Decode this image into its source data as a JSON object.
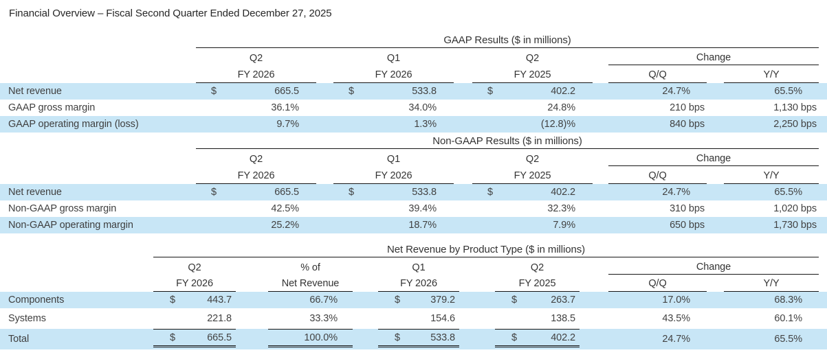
{
  "title": "Financial Overview – Fiscal Second Quarter Ended December 27, 2025",
  "colors": {
    "stripe": "#c8e6f6",
    "text": "#424242",
    "rule": "#161616"
  },
  "sections": [
    {
      "heading": "GAAP Results ($ in millions)",
      "change_label": "Change",
      "change_columns": [
        "Q/Q",
        "Y/Y"
      ],
      "columns": [
        {
          "top": "Q2",
          "bottom": "FY 2026"
        },
        {
          "top": "Q1",
          "bottom": "FY 2026"
        },
        {
          "top": "Q2",
          "bottom": "FY 2025"
        }
      ],
      "rows": [
        {
          "label": "Net revenue",
          "striped": true,
          "total": false,
          "values": [
            {
              "cur": "$",
              "val": "665.5"
            },
            {
              "cur": "$",
              "val": "533.8"
            },
            {
              "cur": "$",
              "val": "402.2"
            }
          ],
          "qq": "24.7%",
          "yy": "65.5%"
        },
        {
          "label": "GAAP gross margin",
          "striped": false,
          "total": false,
          "values": [
            {
              "cur": "",
              "val": "36.1%"
            },
            {
              "cur": "",
              "val": "34.0%"
            },
            {
              "cur": "",
              "val": "24.8%"
            }
          ],
          "qq": "210 bps",
          "yy": "1,130 bps"
        },
        {
          "label": "GAAP operating margin (loss)",
          "striped": true,
          "total": false,
          "values": [
            {
              "cur": "",
              "val": "9.7%"
            },
            {
              "cur": "",
              "val": "1.3%"
            },
            {
              "cur": "",
              "val": "(12.8)%"
            }
          ],
          "qq": "840 bps",
          "yy": "2,250 bps"
        }
      ]
    },
    {
      "heading": "Non-GAAP Results ($ in millions)",
      "change_label": "Change",
      "change_columns": [
        "Q/Q",
        "Y/Y"
      ],
      "columns": [
        {
          "top": "Q2",
          "bottom": "FY 2026"
        },
        {
          "top": "Q1",
          "bottom": "FY 2026"
        },
        {
          "top": "Q2",
          "bottom": "FY 2025"
        }
      ],
      "rows": [
        {
          "label": "Net revenue",
          "striped": true,
          "total": false,
          "values": [
            {
              "cur": "$",
              "val": "665.5"
            },
            {
              "cur": "$",
              "val": "533.8"
            },
            {
              "cur": "$",
              "val": "402.2"
            }
          ],
          "qq": "24.7%",
          "yy": "65.5%"
        },
        {
          "label": "Non-GAAP gross margin",
          "striped": false,
          "total": false,
          "values": [
            {
              "cur": "",
              "val": "42.5%"
            },
            {
              "cur": "",
              "val": "39.4%"
            },
            {
              "cur": "",
              "val": "32.3%"
            }
          ],
          "qq": "310 bps",
          "yy": "1,020 bps"
        },
        {
          "label": "Non-GAAP operating margin",
          "striped": true,
          "total": false,
          "values": [
            {
              "cur": "",
              "val": "25.2%"
            },
            {
              "cur": "",
              "val": "18.7%"
            },
            {
              "cur": "",
              "val": "7.9%"
            }
          ],
          "qq": "650 bps",
          "yy": "1,730 bps"
        }
      ]
    },
    {
      "heading": "Net Revenue by Product Type ($ in millions)",
      "change_label": "Change",
      "change_columns": [
        "Q/Q",
        "Y/Y"
      ],
      "columns": [
        {
          "top": "Q2",
          "bottom": "FY 2026"
        },
        {
          "top": "% of",
          "bottom": "Net Revenue"
        },
        {
          "top": "Q1",
          "bottom": "FY 2026"
        },
        {
          "top": "Q2",
          "bottom": "FY 2025"
        }
      ],
      "rows": [
        {
          "label": "Components",
          "striped": true,
          "total": false,
          "values": [
            {
              "cur": "$",
              "val": "443.7"
            },
            {
              "cur": "",
              "val": "66.7%"
            },
            {
              "cur": "$",
              "val": "379.2"
            },
            {
              "cur": "$",
              "val": "263.7"
            }
          ],
          "qq": "17.0%",
          "yy": "68.3%"
        },
        {
          "label": "Systems",
          "striped": false,
          "total": false,
          "values": [
            {
              "cur": "",
              "val": "221.8"
            },
            {
              "cur": "",
              "val": "33.3%"
            },
            {
              "cur": "",
              "val": "154.6"
            },
            {
              "cur": "",
              "val": "138.5"
            }
          ],
          "qq": "43.5%",
          "yy": "60.1%"
        },
        {
          "label": "Total",
          "striped": true,
          "total": true,
          "values": [
            {
              "cur": "$",
              "val": "665.5"
            },
            {
              "cur": "",
              "val": "100.0%"
            },
            {
              "cur": "$",
              "val": "533.8"
            },
            {
              "cur": "$",
              "val": "402.2"
            }
          ],
          "qq": "24.7%",
          "yy": "65.5%"
        }
      ]
    }
  ]
}
